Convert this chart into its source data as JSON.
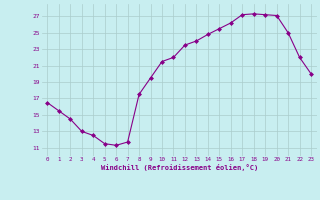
{
  "x": [
    0,
    1,
    2,
    3,
    4,
    5,
    6,
    7,
    8,
    9,
    10,
    11,
    12,
    13,
    14,
    15,
    16,
    17,
    18,
    19,
    20,
    21,
    22,
    23
  ],
  "y": [
    16.5,
    15.5,
    14.5,
    13.0,
    12.5,
    11.5,
    11.3,
    11.7,
    17.5,
    19.5,
    21.5,
    22.0,
    23.5,
    24.0,
    24.8,
    25.5,
    26.2,
    27.2,
    27.3,
    27.2,
    27.1,
    25.0,
    22.0,
    20.0
  ],
  "line_color": "#880088",
  "marker": "D",
  "marker_size": 2,
  "bg_color": "#c8eef0",
  "grid_color": "#aacccc",
  "xlabel": "Windchill (Refroidissement éolien,°C)",
  "xlabel_color": "#880088",
  "ytick_labels": [
    "11",
    "13",
    "15",
    "17",
    "19",
    "21",
    "23",
    "25",
    "27"
  ],
  "yticks": [
    11,
    13,
    15,
    17,
    19,
    21,
    23,
    25,
    27
  ],
  "ylim": [
    10.0,
    28.5
  ],
  "xlim": [
    -0.5,
    23.5
  ],
  "xticks": [
    0,
    1,
    2,
    3,
    4,
    5,
    6,
    7,
    8,
    9,
    10,
    11,
    12,
    13,
    14,
    15,
    16,
    17,
    18,
    19,
    20,
    21,
    22,
    23
  ]
}
